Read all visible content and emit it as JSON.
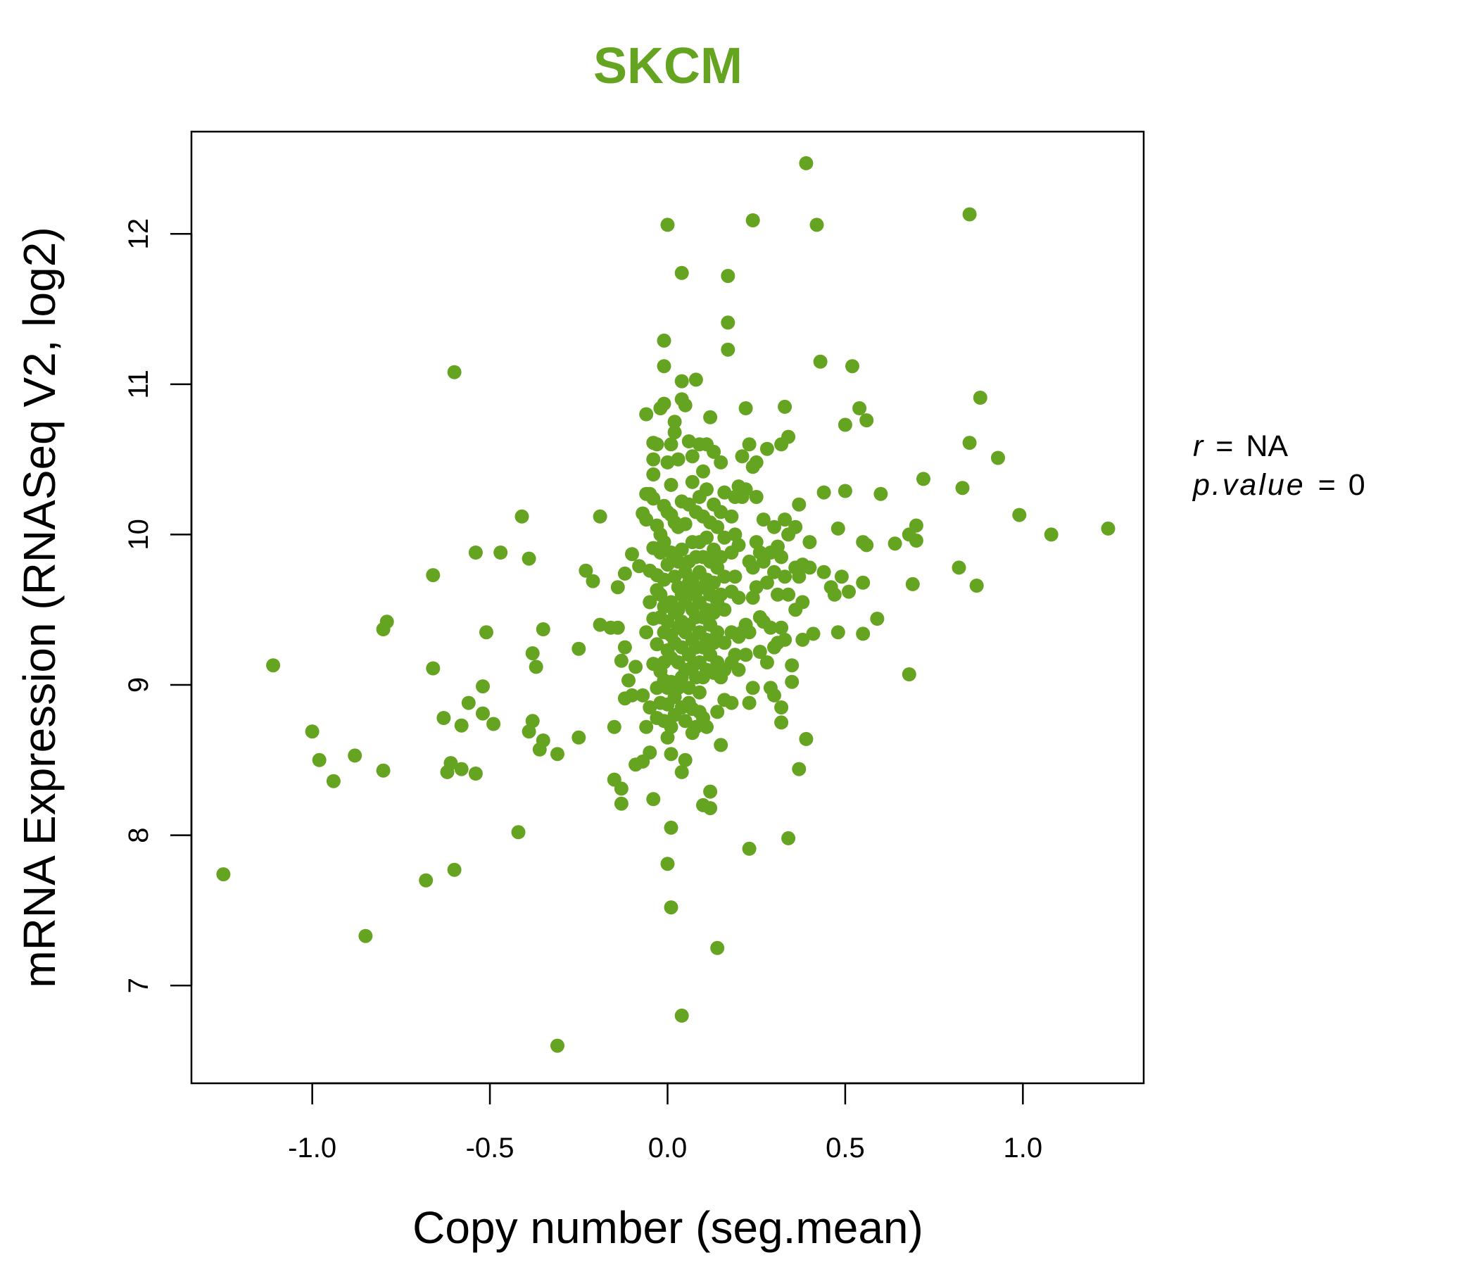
{
  "colors": {
    "point": "#65a421",
    "title": "#65a421",
    "axis": "#000000"
  },
  "stats": {
    "r_label": "r",
    "r_value": "NA",
    "p_label": "p.value",
    "p_value": "0",
    "eq": "="
  },
  "chart_data": {
    "type": "scatter",
    "title": "SKCM",
    "xlabel": "Copy number (seg.mean)",
    "ylabel": "mRNA Expression (RNASeq V2, log2)",
    "xlim": [
      -1.34,
      1.34
    ],
    "ylim": [
      6.35,
      12.68
    ],
    "xticks": [
      {
        "value": -1.0,
        "label": "-1.0"
      },
      {
        "value": -0.5,
        "label": "-0.5"
      },
      {
        "value": 0.0,
        "label": "0.0"
      },
      {
        "value": 0.5,
        "label": "0.5"
      },
      {
        "value": 1.0,
        "label": "1.0"
      }
    ],
    "yticks": [
      {
        "value": 7,
        "label": "7"
      },
      {
        "value": 8,
        "label": "8"
      },
      {
        "value": 9,
        "label": "9"
      },
      {
        "value": 10,
        "label": "10"
      },
      {
        "value": 11,
        "label": "11"
      },
      {
        "value": 12,
        "label": "12"
      }
    ],
    "grid": false,
    "points": [
      [
        -1.25,
        7.74
      ],
      [
        -1.11,
        9.13
      ],
      [
        -1.0,
        8.69
      ],
      [
        -0.98,
        8.5
      ],
      [
        -0.94,
        8.36
      ],
      [
        -0.88,
        8.53
      ],
      [
        -0.85,
        7.33
      ],
      [
        -0.8,
        8.43
      ],
      [
        -0.8,
        9.37
      ],
      [
        -0.79,
        9.42
      ],
      [
        -0.68,
        7.7
      ],
      [
        -0.66,
        9.73
      ],
      [
        -0.66,
        9.11
      ],
      [
        -0.63,
        8.78
      ],
      [
        -0.62,
        8.42
      ],
      [
        -0.61,
        8.48
      ],
      [
        -0.6,
        11.08
      ],
      [
        -0.6,
        7.77
      ],
      [
        -0.58,
        8.44
      ],
      [
        -0.58,
        8.73
      ],
      [
        -0.56,
        8.88
      ],
      [
        -0.54,
        8.41
      ],
      [
        -0.54,
        9.88
      ],
      [
        -0.52,
        8.99
      ],
      [
        -0.52,
        8.81
      ],
      [
        -0.51,
        9.35
      ],
      [
        -0.49,
        8.74
      ],
      [
        -0.47,
        9.88
      ],
      [
        -0.42,
        8.02
      ],
      [
        -0.41,
        10.12
      ],
      [
        -0.39,
        9.84
      ],
      [
        -0.38,
        8.76
      ],
      [
        -0.38,
        9.21
      ],
      [
        -0.37,
        9.12
      ],
      [
        -0.39,
        8.69
      ],
      [
        -0.36,
        8.57
      ],
      [
        -0.35,
        8.63
      ],
      [
        -0.35,
        9.37
      ],
      [
        -0.31,
        8.54
      ],
      [
        -0.31,
        6.6
      ],
      [
        -0.25,
        8.65
      ],
      [
        -0.25,
        9.24
      ],
      [
        -0.23,
        9.76
      ],
      [
        -0.21,
        9.69
      ],
      [
        -0.19,
        10.12
      ],
      [
        -0.19,
        9.4
      ],
      [
        -0.16,
        9.38
      ],
      [
        -0.15,
        8.37
      ],
      [
        -0.15,
        8.72
      ],
      [
        -0.14,
        9.65
      ],
      [
        -0.14,
        9.38
      ],
      [
        -0.13,
        8.31
      ],
      [
        -0.13,
        8.21
      ],
      [
        -0.13,
        9.16
      ],
      [
        -0.12,
        9.74
      ],
      [
        -0.12,
        9.25
      ],
      [
        -0.12,
        8.91
      ],
      [
        -0.11,
        9.03
      ],
      [
        -0.1,
        8.93
      ],
      [
        -0.1,
        9.87
      ],
      [
        -0.09,
        8.47
      ],
      [
        -0.09,
        9.12
      ],
      [
        -0.08,
        9.79
      ],
      [
        -0.07,
        10.14
      ],
      [
        -0.07,
        8.93
      ],
      [
        -0.07,
        8.49
      ],
      [
        -0.06,
        9.35
      ],
      [
        -0.06,
        8.72
      ],
      [
        -0.06,
        10.27
      ],
      [
        -0.06,
        10.1
      ],
      [
        -0.06,
        10.8
      ],
      [
        -0.05,
        10.27
      ],
      [
        -0.05,
        9.76
      ],
      [
        -0.05,
        9.55
      ],
      [
        -0.05,
        8.85
      ],
      [
        -0.05,
        8.55
      ],
      [
        -0.04,
        10.61
      ],
      [
        -0.04,
        10.5
      ],
      [
        -0.04,
        10.4
      ],
      [
        -0.04,
        10.24
      ],
      [
        -0.04,
        9.91
      ],
      [
        -0.04,
        9.44
      ],
      [
        -0.04,
        9.14
      ],
      [
        -0.04,
        8.24
      ],
      [
        -0.03,
        10.6
      ],
      [
        -0.03,
        10.06
      ],
      [
        -0.03,
        9.63
      ],
      [
        -0.03,
        9.27
      ],
      [
        -0.03,
        8.98
      ],
      [
        -0.03,
        8.78
      ],
      [
        -0.03,
        9.73
      ],
      [
        -0.02,
        10.84
      ],
      [
        -0.02,
        9.88
      ],
      [
        -0.02,
        9.45
      ],
      [
        -0.02,
        9.09
      ],
      [
        -0.02,
        8.88
      ],
      [
        -0.02,
        10.0
      ],
      [
        -0.02,
        9.6
      ],
      [
        -0.01,
        11.29
      ],
      [
        -0.01,
        11.12
      ],
      [
        -0.01,
        10.87
      ],
      [
        -0.01,
        10.19
      ],
      [
        -0.01,
        9.95
      ],
      [
        -0.01,
        9.7
      ],
      [
        -0.01,
        9.52
      ],
      [
        -0.01,
        9.35
      ],
      [
        -0.01,
        9.15
      ],
      [
        -0.01,
        9.03
      ],
      [
        -0.01,
        8.76
      ],
      [
        0.0,
        10.48
      ],
      [
        0.0,
        10.15
      ],
      [
        0.0,
        9.8
      ],
      [
        0.0,
        9.42
      ],
      [
        0.0,
        9.23
      ],
      [
        0.0,
        8.98
      ],
      [
        0.0,
        8.87
      ],
      [
        0.0,
        8.65
      ],
      [
        0.0,
        7.81
      ],
      [
        0.0,
        12.06
      ],
      [
        0.01,
        10.6
      ],
      [
        0.01,
        10.33
      ],
      [
        0.01,
        10.13
      ],
      [
        0.01,
        9.88
      ],
      [
        0.01,
        9.55
      ],
      [
        0.01,
        9.33
      ],
      [
        0.01,
        9.18
      ],
      [
        0.01,
        9.02
      ],
      [
        0.01,
        8.72
      ],
      [
        0.01,
        8.54
      ],
      [
        0.01,
        8.05
      ],
      [
        0.01,
        7.52
      ],
      [
        0.02,
        10.75
      ],
      [
        0.02,
        10.08
      ],
      [
        0.02,
        9.72
      ],
      [
        0.02,
        9.48
      ],
      [
        0.02,
        9.28
      ],
      [
        0.02,
        8.92
      ],
      [
        0.02,
        10.68
      ],
      [
        0.02,
        8.8
      ],
      [
        0.03,
        10.5
      ],
      [
        0.03,
        10.05
      ],
      [
        0.03,
        9.65
      ],
      [
        0.03,
        9.38
      ],
      [
        0.03,
        9.15
      ],
      [
        0.03,
        8.98
      ],
      [
        0.03,
        9.82
      ],
      [
        0.03,
        9.5
      ],
      [
        0.04,
        11.74
      ],
      [
        0.04,
        11.02
      ],
      [
        0.04,
        10.9
      ],
      [
        0.04,
        10.22
      ],
      [
        0.04,
        9.9
      ],
      [
        0.04,
        9.6
      ],
      [
        0.04,
        9.42
      ],
      [
        0.04,
        9.25
      ],
      [
        0.04,
        9.05
      ],
      [
        0.04,
        8.85
      ],
      [
        0.04,
        8.42
      ],
      [
        0.04,
        6.8
      ],
      [
        0.05,
        10.86
      ],
      [
        0.05,
        10.07
      ],
      [
        0.05,
        9.75
      ],
      [
        0.05,
        9.55
      ],
      [
        0.05,
        9.35
      ],
      [
        0.05,
        9.1
      ],
      [
        0.05,
        8.76
      ],
      [
        0.05,
        8.5
      ],
      [
        0.06,
        10.62
      ],
      [
        0.06,
        10.2
      ],
      [
        0.06,
        9.82
      ],
      [
        0.06,
        9.6
      ],
      [
        0.06,
        9.4
      ],
      [
        0.06,
        9.2
      ],
      [
        0.06,
        8.98
      ],
      [
        0.06,
        8.88
      ],
      [
        0.06,
        9.68
      ],
      [
        0.07,
        10.52
      ],
      [
        0.07,
        10.35
      ],
      [
        0.07,
        9.95
      ],
      [
        0.07,
        9.7
      ],
      [
        0.07,
        9.5
      ],
      [
        0.07,
        9.3
      ],
      [
        0.07,
        9.12
      ],
      [
        0.07,
        8.84
      ],
      [
        0.07,
        8.68
      ],
      [
        0.08,
        11.03
      ],
      [
        0.08,
        10.15
      ],
      [
        0.08,
        9.85
      ],
      [
        0.08,
        9.62
      ],
      [
        0.08,
        9.45
      ],
      [
        0.08,
        9.25
      ],
      [
        0.08,
        9.05
      ],
      [
        0.08,
        8.72
      ],
      [
        0.09,
        10.6
      ],
      [
        0.09,
        10.25
      ],
      [
        0.09,
        9.95
      ],
      [
        0.09,
        9.75
      ],
      [
        0.09,
        9.55
      ],
      [
        0.09,
        9.35
      ],
      [
        0.09,
        9.15
      ],
      [
        0.09,
        8.95
      ],
      [
        0.09,
        8.82
      ],
      [
        0.1,
        10.42
      ],
      [
        0.1,
        10.12
      ],
      [
        0.1,
        9.85
      ],
      [
        0.1,
        9.65
      ],
      [
        0.1,
        9.45
      ],
      [
        0.1,
        9.25
      ],
      [
        0.1,
        9.05
      ],
      [
        0.1,
        8.78
      ],
      [
        0.1,
        8.2
      ],
      [
        0.11,
        10.6
      ],
      [
        0.11,
        10.3
      ],
      [
        0.11,
        9.98
      ],
      [
        0.11,
        9.7
      ],
      [
        0.11,
        9.5
      ],
      [
        0.11,
        9.3
      ],
      [
        0.11,
        9.1
      ],
      [
        0.11,
        8.72
      ],
      [
        0.12,
        10.78
      ],
      [
        0.12,
        10.08
      ],
      [
        0.12,
        9.82
      ],
      [
        0.12,
        9.6
      ],
      [
        0.12,
        9.4
      ],
      [
        0.12,
        9.2
      ],
      [
        0.12,
        8.29
      ],
      [
        0.12,
        8.18
      ],
      [
        0.13,
        10.55
      ],
      [
        0.13,
        10.2
      ],
      [
        0.13,
        9.9
      ],
      [
        0.13,
        9.68
      ],
      [
        0.13,
        9.48
      ],
      [
        0.13,
        9.28
      ],
      [
        0.13,
        9.08
      ],
      [
        0.14,
        10.05
      ],
      [
        0.14,
        9.78
      ],
      [
        0.14,
        9.55
      ],
      [
        0.14,
        9.35
      ],
      [
        0.14,
        9.15
      ],
      [
        0.14,
        8.82
      ],
      [
        0.14,
        7.25
      ],
      [
        0.15,
        10.48
      ],
      [
        0.15,
        10.15
      ],
      [
        0.15,
        9.85
      ],
      [
        0.15,
        9.6
      ],
      [
        0.15,
        9.05
      ],
      [
        0.15,
        8.6
      ],
      [
        0.16,
        10.28
      ],
      [
        0.16,
        9.98
      ],
      [
        0.16,
        9.72
      ],
      [
        0.16,
        9.5
      ],
      [
        0.16,
        9.28
      ],
      [
        0.16,
        9.1
      ],
      [
        0.16,
        8.9
      ],
      [
        0.17,
        11.23
      ],
      [
        0.17,
        11.72
      ],
      [
        0.17,
        11.41
      ],
      [
        0.18,
        10.12
      ],
      [
        0.18,
        9.88
      ],
      [
        0.18,
        9.62
      ],
      [
        0.18,
        9.35
      ],
      [
        0.18,
        9.15
      ],
      [
        0.18,
        8.88
      ],
      [
        0.19,
        10.25
      ],
      [
        0.19,
        10.0
      ],
      [
        0.19,
        9.72
      ],
      [
        0.19,
        9.2
      ],
      [
        0.2,
        10.32
      ],
      [
        0.2,
        9.93
      ],
      [
        0.2,
        9.58
      ],
      [
        0.2,
        9.32
      ],
      [
        0.2,
        9.1
      ],
      [
        0.21,
        10.52
      ],
      [
        0.21,
        10.25
      ],
      [
        0.21,
        9.35
      ],
      [
        0.22,
        10.84
      ],
      [
        0.22,
        10.3
      ],
      [
        0.22,
        9.4
      ],
      [
        0.22,
        9.2
      ],
      [
        0.23,
        10.6
      ],
      [
        0.23,
        9.82
      ],
      [
        0.23,
        9.35
      ],
      [
        0.23,
        8.88
      ],
      [
        0.23,
        7.91
      ],
      [
        0.24,
        12.09
      ],
      [
        0.24,
        10.45
      ],
      [
        0.24,
        9.78
      ],
      [
        0.24,
        9.58
      ],
      [
        0.24,
        8.98
      ],
      [
        0.25,
        10.48
      ],
      [
        0.25,
        10.25
      ],
      [
        0.25,
        9.95
      ],
      [
        0.25,
        9.65
      ],
      [
        0.26,
        9.88
      ],
      [
        0.26,
        9.45
      ],
      [
        0.26,
        9.22
      ],
      [
        0.27,
        10.1
      ],
      [
        0.27,
        9.82
      ],
      [
        0.27,
        9.42
      ],
      [
        0.28,
        10.57
      ],
      [
        0.28,
        9.68
      ],
      [
        0.28,
        9.15
      ],
      [
        0.29,
        9.88
      ],
      [
        0.29,
        9.38
      ],
      [
        0.29,
        8.98
      ],
      [
        0.3,
        10.05
      ],
      [
        0.3,
        9.75
      ],
      [
        0.3,
        9.25
      ],
      [
        0.3,
        8.93
      ],
      [
        0.31,
        9.92
      ],
      [
        0.31,
        9.6
      ],
      [
        0.31,
        9.28
      ],
      [
        0.32,
        10.6
      ],
      [
        0.32,
        9.85
      ],
      [
        0.32,
        9.38
      ],
      [
        0.32,
        8.85
      ],
      [
        0.32,
        8.75
      ],
      [
        0.33,
        10.85
      ],
      [
        0.33,
        10.1
      ],
      [
        0.33,
        9.72
      ],
      [
        0.33,
        9.3
      ],
      [
        0.34,
        10.65
      ],
      [
        0.34,
        10.0
      ],
      [
        0.34,
        9.6
      ],
      [
        0.34,
        7.98
      ],
      [
        0.35,
        9.13
      ],
      [
        0.35,
        9.02
      ],
      [
        0.36,
        10.05
      ],
      [
        0.36,
        9.78
      ],
      [
        0.36,
        9.5
      ],
      [
        0.37,
        10.2
      ],
      [
        0.37,
        9.72
      ],
      [
        0.37,
        8.44
      ],
      [
        0.38,
        9.8
      ],
      [
        0.38,
        9.55
      ],
      [
        0.38,
        9.3
      ],
      [
        0.39,
        8.64
      ],
      [
        0.39,
        12.47
      ],
      [
        0.4,
        9.95
      ],
      [
        0.4,
        9.78
      ],
      [
        0.41,
        9.34
      ],
      [
        0.42,
        12.06
      ],
      [
        0.43,
        11.15
      ],
      [
        0.44,
        10.28
      ],
      [
        0.44,
        9.75
      ],
      [
        0.46,
        9.65
      ],
      [
        0.47,
        9.6
      ],
      [
        0.48,
        10.04
      ],
      [
        0.48,
        9.35
      ],
      [
        0.49,
        9.72
      ],
      [
        0.5,
        10.73
      ],
      [
        0.5,
        10.29
      ],
      [
        0.51,
        9.62
      ],
      [
        0.52,
        11.12
      ],
      [
        0.54,
        10.84
      ],
      [
        0.55,
        9.95
      ],
      [
        0.55,
        9.68
      ],
      [
        0.55,
        9.34
      ],
      [
        0.56,
        10.76
      ],
      [
        0.56,
        9.93
      ],
      [
        0.59,
        9.44
      ],
      [
        0.6,
        10.27
      ],
      [
        0.64,
        9.94
      ],
      [
        0.68,
        10.0
      ],
      [
        0.68,
        9.07
      ],
      [
        0.69,
        9.67
      ],
      [
        0.7,
        10.06
      ],
      [
        0.7,
        9.96
      ],
      [
        0.72,
        10.37
      ],
      [
        0.82,
        9.78
      ],
      [
        0.83,
        10.31
      ],
      [
        0.85,
        12.13
      ],
      [
        0.85,
        10.61
      ],
      [
        0.87,
        9.66
      ],
      [
        0.88,
        10.91
      ],
      [
        0.93,
        10.51
      ],
      [
        0.99,
        10.13
      ],
      [
        1.08,
        10.0
      ],
      [
        1.24,
        10.04
      ]
    ]
  }
}
